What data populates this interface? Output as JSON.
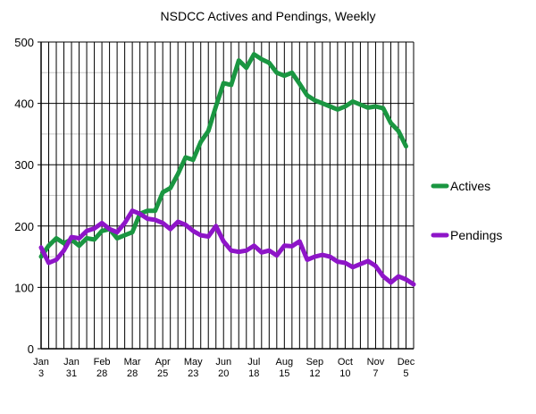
{
  "chart_data": {
    "type": "line",
    "title": "NSDCC Actives and Pendings, Weekly",
    "xlabel": "",
    "ylabel": "",
    "ylim": [
      0,
      500
    ],
    "yticks": [
      "0",
      "100",
      "200",
      "300",
      "400",
      "500"
    ],
    "xtick_labels": [
      {
        "index": 0,
        "month": "Jan",
        "day": "3"
      },
      {
        "index": 4,
        "month": "Jan",
        "day": "31"
      },
      {
        "index": 8,
        "month": "Feb",
        "day": "28"
      },
      {
        "index": 12,
        "month": "Mar",
        "day": "28"
      },
      {
        "index": 16,
        "month": "Apr",
        "day": "25"
      },
      {
        "index": 20,
        "month": "May",
        "day": "23"
      },
      {
        "index": 24,
        "month": "Jun",
        "day": "20"
      },
      {
        "index": 28,
        "month": "Jul",
        "day": "18"
      },
      {
        "index": 32,
        "month": "Aug",
        "day": "15"
      },
      {
        "index": 36,
        "month": "Sep",
        "day": "12"
      },
      {
        "index": 40,
        "month": "Oct",
        "day": "10"
      },
      {
        "index": 44,
        "month": "Nov",
        "day": "7"
      },
      {
        "index": 48,
        "month": "Dec",
        "day": "5"
      }
    ],
    "grid": true,
    "legend_position": "right",
    "series": [
      {
        "name": "Actives",
        "color": "#1a9641",
        "values": [
          150,
          168,
          180,
          172,
          178,
          168,
          180,
          178,
          192,
          195,
          180,
          185,
          190,
          220,
          225,
          225,
          255,
          262,
          285,
          312,
          308,
          337,
          355,
          395,
          433,
          430,
          470,
          458,
          480,
          472,
          466,
          450,
          445,
          450,
          432,
          413,
          405,
          400,
          395,
          390,
          395,
          403,
          398,
          393,
          395,
          392,
          368,
          355,
          330
        ]
      },
      {
        "name": "Pendings",
        "color": "#8e15c8",
        "values": [
          165,
          140,
          145,
          160,
          182,
          180,
          192,
          196,
          205,
          195,
          190,
          205,
          225,
          220,
          212,
          210,
          205,
          195,
          207,
          202,
          192,
          185,
          183,
          200,
          175,
          160,
          158,
          160,
          168,
          157,
          160,
          152,
          168,
          167,
          175,
          145,
          150,
          153,
          150,
          142,
          140,
          133,
          138,
          143,
          135,
          118,
          108,
          118,
          113,
          105
        ]
      }
    ]
  }
}
